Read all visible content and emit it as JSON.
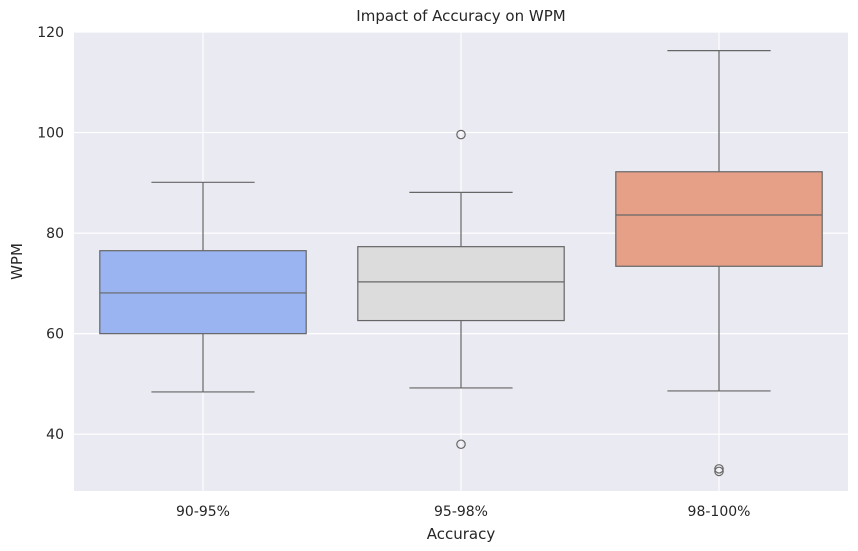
{
  "chart_data": {
    "type": "boxplot",
    "title": "Impact of Accuracy on WPM",
    "xlabel": "Accuracy",
    "ylabel": "WPM",
    "ylim": [
      28.7,
      120.0
    ],
    "yticks": [
      40,
      60,
      80,
      100,
      120
    ],
    "grid": true,
    "categories": [
      "90-95%",
      "95-98%",
      "98-100%"
    ],
    "boxes": [
      {
        "category": "90-95%",
        "whisker_low": 48.4,
        "q1": 60.0,
        "median": 68.1,
        "q3": 76.5,
        "whisker_high": 90.1,
        "outliers": []
      },
      {
        "category": "95-98%",
        "whisker_low": 49.2,
        "q1": 62.6,
        "median": 70.3,
        "q3": 77.3,
        "whisker_high": 88.1,
        "outliers": [
          99.6,
          38.0
        ]
      },
      {
        "category": "98-100%",
        "whisker_low": 48.6,
        "q1": 73.4,
        "median": 83.6,
        "q3": 92.2,
        "whisker_high": 116.3,
        "outliers": [
          33.1,
          32.6
        ]
      }
    ],
    "colors": [
      "#9ab4f2",
      "#dcdcdc",
      "#e6a087"
    ],
    "background": "#eaeaf2",
    "grid_color": "#ffffff",
    "line_color": "#666666"
  }
}
